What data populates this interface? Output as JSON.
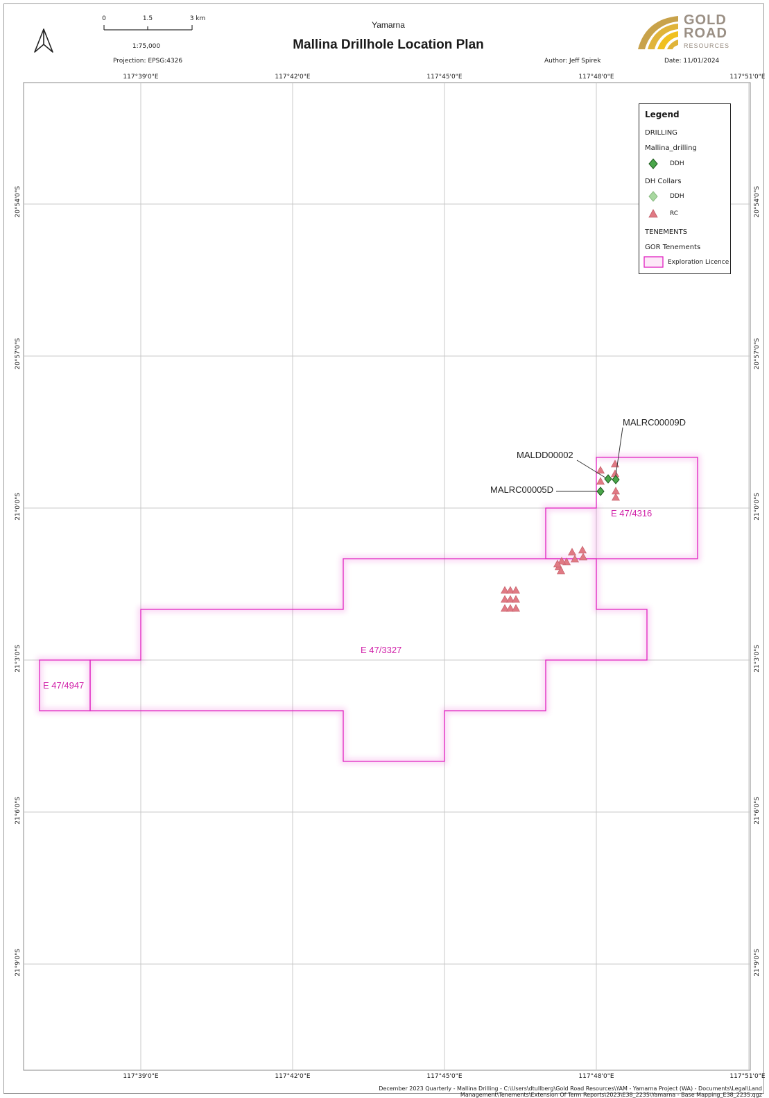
{
  "header": {
    "project": "Yamarna",
    "title": "Mallina Drillhole Location Plan",
    "scale_ratio": "1:75,000",
    "projection": "Projection: EPSG:4326",
    "author": "Author: Jeff Spirek",
    "date": "Date: 11/01/2024",
    "scalebar_ticks": [
      "0",
      "1.5",
      "3 km"
    ]
  },
  "logo": {
    "line1": "GOLD",
    "line2": "ROAD",
    "line3": "RESOURCES",
    "colors": [
      "#c8a24a",
      "#e0b43a",
      "#f0c020",
      "#9a8f84"
    ]
  },
  "grid": {
    "longitudes": [
      "117°39'0\"E",
      "117°42'0\"E",
      "117°45'0\"E",
      "117°48'0\"E",
      "117°51'0\"E"
    ],
    "latitudes": [
      "20°54'0\"S",
      "20°57'0\"S",
      "21°0'0\"S",
      "21°3'0\"S",
      "21°6'0\"S",
      "21°9'0\"S"
    ]
  },
  "legend": {
    "title": "Legend",
    "drilling_heading": "DRILLING",
    "mallina_layer": "Mallina_drilling",
    "mallina_ddh": "DDH",
    "collars_layer": "DH Collars",
    "collars_ddh": "DDH",
    "collars_rc": "RC",
    "tenements_heading": "TENEMENTS",
    "gor_layer": "GOR Tenements",
    "exploration_licence": "Exploration Licence"
  },
  "callouts": {
    "malrc00009d": "MALRC00009D",
    "maldd00002": "MALDD00002",
    "malrc00005d": "MALRC00005D"
  },
  "tenements": {
    "e47_4316": "E 47/4316",
    "e47_3327": "E 47/3327",
    "e47_4947": "E 47/4947"
  },
  "colors": {
    "tenement": "#e020c0",
    "ddh": "#3a9a3a",
    "ddh_light": "#a8d8a0",
    "rc": "#e07a84"
  },
  "footer": {
    "line1": "December 2023 Quarterly - Mallina Drilling - C:\\Users\\dtullberg\\Gold Road Resources\\YAM - Yamarna Project (WA) - Documents\\Legal\\Land",
    "line2": "Management\\Tenements\\Extension Of Term Reports\\2023\\E38_2235\\Yamarna - Base Mapping_E38_2235.qgz"
  }
}
